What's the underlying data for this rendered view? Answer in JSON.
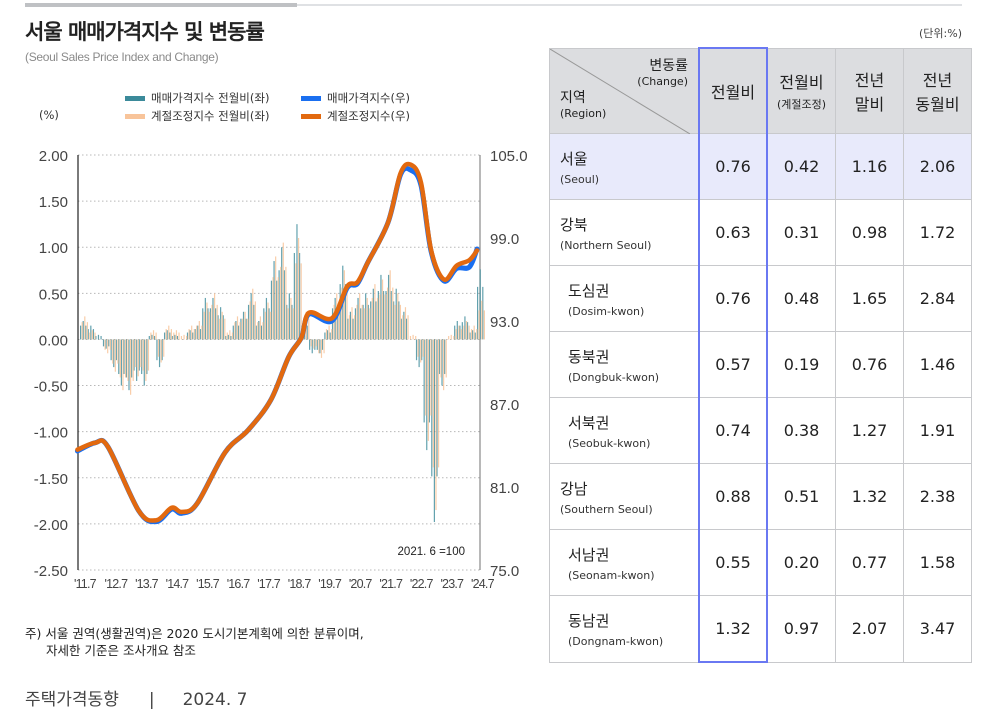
{
  "header": {
    "title": "서울 매매가격지수 및 변동률",
    "subtitle": "(Seoul Sales Price Index and Change)",
    "unit": "(단위:%)"
  },
  "chart_data": {
    "type": "bar+line",
    "title": "서울 매매가격지수 및 변동률",
    "left_axis_label": "(%)",
    "left_ylim": [
      -2.5,
      2.0
    ],
    "left_ticks": [
      "2.00",
      "1.50",
      "1.00",
      "0.50",
      "0.00",
      "-0.50",
      "-1.00",
      "-1.50",
      "-2.00",
      "-2.50"
    ],
    "right_ylim": [
      75.0,
      105.0
    ],
    "right_ticks": [
      "105.0",
      "99.0",
      "93.0",
      "87.0",
      "81.0",
      "75.0"
    ],
    "x_ticks": [
      "'11.7",
      "'12.7",
      "'13.7",
      "'14.7",
      "'15.7",
      "'16.7",
      "'17.7",
      "'18.7",
      "'19.7",
      "'20.7",
      "'21.7",
      "'22.7",
      "'23.7",
      "'24.7"
    ],
    "grid": "horizontal dotted",
    "legend_position": "top",
    "annotation": "2021. 6 =100",
    "bar_periods": [
      "2011.7",
      "2011.10",
      "2012.1",
      "2012.4",
      "2012.7",
      "2012.10",
      "2013.1",
      "2013.4",
      "2013.7",
      "2013.10",
      "2014.1",
      "2014.4",
      "2014.7",
      "2014.10",
      "2015.1",
      "2015.4",
      "2015.7",
      "2015.10",
      "2016.1",
      "2016.4",
      "2016.7",
      "2016.10",
      "2017.1",
      "2017.4",
      "2017.7",
      "2017.10",
      "2018.1",
      "2018.4",
      "2018.7",
      "2018.10",
      "2019.1",
      "2019.4",
      "2019.7",
      "2019.10",
      "2020.1",
      "2020.4",
      "2020.7",
      "2020.10",
      "2021.1",
      "2021.4",
      "2021.7",
      "2021.10",
      "2022.1",
      "2022.4",
      "2022.7",
      "2022.10",
      "2023.1",
      "2023.4",
      "2023.7",
      "2023.10",
      "2024.1",
      "2024.4",
      "2024.7"
    ],
    "series": [
      {
        "name": "매매가격지수 전월비(좌)",
        "axis": "left",
        "kind": "bar",
        "color": "#3b8a9a",
        "values": [
          0.2,
          0.15,
          0.05,
          -0.1,
          -0.3,
          -0.5,
          -0.55,
          -0.45,
          -0.5,
          0.05,
          -0.3,
          0.1,
          0.05,
          0.0,
          0.1,
          0.15,
          0.45,
          0.45,
          0.35,
          0.05,
          0.2,
          0.3,
          0.5,
          0.2,
          0.45,
          0.85,
          1.0,
          0.5,
          1.25,
          0.2,
          -0.15,
          -0.15,
          0.1,
          0.45,
          0.8,
          0.3,
          0.45,
          0.5,
          0.55,
          0.7,
          0.7,
          0.55,
          0.3,
          0.0,
          -0.3,
          -1.2,
          -1.98,
          -0.5,
          0.0,
          0.2,
          0.25,
          0.1,
          0.76
        ]
      },
      {
        "name": "계절조정지수 전월비(좌)",
        "axis": "left",
        "kind": "bar",
        "color": "#f8c49a",
        "values": [
          0.25,
          0.1,
          0.0,
          -0.15,
          -0.35,
          -0.55,
          -0.6,
          -0.4,
          -0.45,
          0.1,
          -0.25,
          0.15,
          0.1,
          0.05,
          0.15,
          0.2,
          0.4,
          0.5,
          0.3,
          0.1,
          0.25,
          0.3,
          0.55,
          0.25,
          0.4,
          0.9,
          1.05,
          0.45,
          1.1,
          0.3,
          -0.1,
          -0.2,
          0.15,
          0.5,
          0.75,
          0.35,
          0.5,
          0.45,
          0.6,
          0.65,
          0.75,
          0.5,
          0.35,
          0.05,
          -0.25,
          -1.1,
          -1.85,
          -0.55,
          0.05,
          0.15,
          0.2,
          0.15,
          0.42
        ]
      },
      {
        "name": "매매가격지수(우)",
        "axis": "right",
        "kind": "line",
        "color": "#1a6ff0",
        "x": [
          "2011.6",
          "2012.1",
          "2012.6",
          "2013.6",
          "2014.1",
          "2014.7",
          "2014.11",
          "2015.5",
          "2016.4",
          "2017.1",
          "2017.10",
          "2018.5",
          "2018.10",
          "2019.1",
          "2019.10",
          "2020.4",
          "2020.8",
          "2020.12",
          "2021.8",
          "2022.1",
          "2022.5",
          "2022.9",
          "2023.1",
          "2023.6",
          "2023.11",
          "2024.4",
          "2024.7"
        ],
        "values": [
          83.6,
          84.2,
          83.9,
          79.3,
          78.5,
          79.4,
          79.1,
          79.8,
          83.5,
          85.1,
          87.3,
          90.4,
          91.8,
          93.5,
          93.0,
          95.4,
          95.7,
          97.2,
          100.1,
          103.6,
          103.9,
          102.8,
          98.0,
          95.9,
          96.8,
          96.9,
          98.2
        ]
      },
      {
        "name": "계절조정지수(우)",
        "axis": "right",
        "kind": "line",
        "color": "#e2690f",
        "x": [
          "2011.6",
          "2012.1",
          "2012.6",
          "2013.6",
          "2014.1",
          "2014.7",
          "2014.11",
          "2015.5",
          "2016.4",
          "2017.1",
          "2017.10",
          "2018.5",
          "2018.10",
          "2019.1",
          "2019.10",
          "2020.4",
          "2020.8",
          "2020.12",
          "2021.8",
          "2022.1",
          "2022.5",
          "2022.9",
          "2023.1",
          "2023.6",
          "2023.11",
          "2024.4",
          "2024.7"
        ],
        "values": [
          83.7,
          84.2,
          83.9,
          79.3,
          78.6,
          79.5,
          79.2,
          79.8,
          83.5,
          85.1,
          87.3,
          90.4,
          91.8,
          93.6,
          93.2,
          95.5,
          95.8,
          97.2,
          100.1,
          103.7,
          104.3,
          103.0,
          98.1,
          96.0,
          97.0,
          97.4,
          98.1
        ]
      }
    ]
  },
  "note": {
    "line1": "주) 서울 권역(생활권역)은 2020 도시기본계획에 의한 분류이며,",
    "line2": "자세한 기준은 조사개요 참조"
  },
  "footer": {
    "publication": "주택가격동향",
    "separator": "|",
    "date": "2024. 7"
  },
  "table": {
    "corner": {
      "change_ko": "변동률",
      "change_en": "(Change)",
      "region_ko": "지역",
      "region_en": "(Region)"
    },
    "columns": [
      {
        "line1": "전월비",
        "line2": ""
      },
      {
        "line1": "전월비",
        "line2": "(계절조정)"
      },
      {
        "line1": "전년",
        "line2": "말비"
      },
      {
        "line1": "전년",
        "line2": "동월비"
      }
    ],
    "rows": [
      {
        "ko": "서울",
        "en": "(Seoul)",
        "values": [
          "0.76",
          "0.42",
          "1.16",
          "2.06"
        ]
      },
      {
        "ko": "강북",
        "en": "(Northern Seoul)",
        "values": [
          "0.63",
          "0.31",
          "0.98",
          "1.72"
        ]
      },
      {
        "ko": "도심권",
        "en": "(Dosim-kwon)",
        "values": [
          "0.76",
          "0.48",
          "1.65",
          "2.84"
        ]
      },
      {
        "ko": "동북권",
        "en": "(Dongbuk-kwon)",
        "values": [
          "0.57",
          "0.19",
          "0.76",
          "1.46"
        ]
      },
      {
        "ko": "서북권",
        "en": "(Seobuk-kwon)",
        "values": [
          "0.74",
          "0.38",
          "1.27",
          "1.91"
        ]
      },
      {
        "ko": "강남",
        "en": "(Southern Seoul)",
        "values": [
          "0.88",
          "0.51",
          "1.32",
          "2.38"
        ]
      },
      {
        "ko": "서남권",
        "en": "(Seonam-kwon)",
        "values": [
          "0.55",
          "0.20",
          "0.77",
          "1.58"
        ]
      },
      {
        "ko": "동남권",
        "en": "(Dongnam-kwon)",
        "values": [
          "1.32",
          "0.97",
          "2.07",
          "3.47"
        ]
      }
    ],
    "highlight_color": "#6a78f2",
    "seoul_row_bg": "#e8eafb"
  }
}
